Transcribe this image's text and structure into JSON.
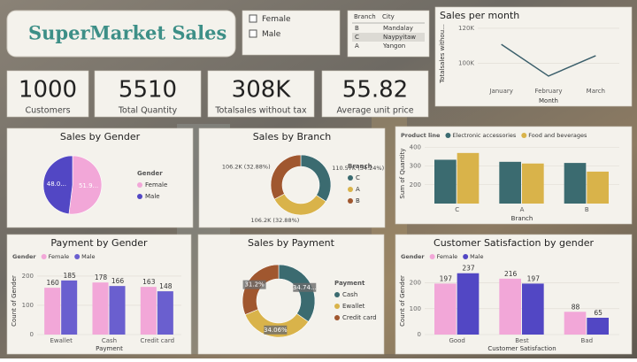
{
  "header": {
    "title": "SuperMarket Sales"
  },
  "gender_slicer": {
    "options": [
      "Female",
      "Male"
    ]
  },
  "branch_table": {
    "columns": [
      "Branch",
      "City"
    ],
    "rows": [
      [
        "B",
        "Mandalay"
      ],
      [
        "C",
        "Naypyitaw"
      ],
      [
        "A",
        "Yangon"
      ]
    ]
  },
  "kpis": [
    {
      "value": 1000,
      "label": "Customers"
    },
    {
      "value": 5510,
      "label": "Total Quantity"
    },
    {
      "value": "308K",
      "label": "Totalsales without tax"
    },
    {
      "value": 55.82,
      "label": "Average unit price"
    }
  ],
  "chart_data": [
    {
      "type": "line",
      "title": "Sales per month",
      "x_label": "Month",
      "y_label": "Totalsales withou...",
      "categories": [
        "January",
        "February",
        "March"
      ],
      "values": [
        110754,
        92589,
        104243
      ],
      "color": "#3b5f6b",
      "ylim": [
        88000,
        123000
      ],
      "yticks": [
        {
          "value": 100000,
          "label": "100K"
        },
        {
          "value": 120000,
          "label": "120K"
        }
      ]
    },
    {
      "type": "pie",
      "title": "Sales by Gender",
      "legend_title": "Gender",
      "categories": [
        "Female",
        "Male"
      ],
      "values": [
        51.98,
        48.02
      ],
      "value_labels": [
        "51.9...",
        "48.0..."
      ],
      "colors": [
        "#f2a7d8",
        "#5247c4"
      ]
    },
    {
      "type": "donut",
      "title": "Sales by Branch",
      "legend_title": "Branch",
      "categories": [
        "C",
        "A",
        "B"
      ],
      "values": [
        110568.71,
        106200.37,
        106197.67
      ],
      "value_labels": [
        "110.57K (34.24%)",
        "106.2K (32.88%)",
        "106.2K (32.88%)"
      ],
      "colors": [
        "#3b6b70",
        "#d9b34a",
        "#a0572f"
      ]
    },
    {
      "type": "bar",
      "legend_title": "Product line",
      "x_label": "Branch",
      "y_label": "Sum of Quantity",
      "categories": [
        "C",
        "A",
        "B"
      ],
      "series": [
        {
          "name": "Electronic accessories",
          "color": "#3b6b70",
          "values": [
            333,
            322,
            316
          ]
        },
        {
          "name": "Food and beverages",
          "color": "#d9b34a",
          "values": [
            369,
            313,
            270
          ]
        }
      ],
      "ylim": [
        100,
        420
      ],
      "yticks": [
        200,
        300,
        400
      ],
      "data_labels": false
    },
    {
      "type": "bar",
      "title": "Payment by Gender",
      "legend_title": "Gender",
      "x_label": "Payment",
      "y_label": "Count of Gender",
      "categories": [
        "Ewallet",
        "Cash",
        "Credit card"
      ],
      "series": [
        {
          "name": "Female",
          "color": "#f2a7d8",
          "values": [
            160,
            178,
            163
          ]
        },
        {
          "name": "Male",
          "color": "#6a5fcf",
          "values": [
            185,
            166,
            148
          ]
        }
      ],
      "ylim": [
        0,
        230
      ],
      "yticks": [
        0,
        100,
        200
      ],
      "data_labels": true
    },
    {
      "type": "donut",
      "title": "Sales by Payment",
      "legend_title": "Payment",
      "categories": [
        "Cash",
        "Ewallet",
        "Credit card"
      ],
      "values": [
        34.74,
        34.06,
        31.2
      ],
      "value_labels": [
        "34.74...",
        "34.06%",
        "31.2%"
      ],
      "colors": [
        "#3b6b70",
        "#d9b34a",
        "#a0572f"
      ]
    },
    {
      "type": "bar",
      "title": "Customer Satisfaction by gender",
      "legend_title": "Gender",
      "x_label": "Customer Satisfaction",
      "y_label": "Count of Gender",
      "categories": [
        "Good",
        "Best",
        "Bad"
      ],
      "series": [
        {
          "name": "Female",
          "color": "#f2a7d8",
          "values": [
            197,
            216,
            88
          ]
        },
        {
          "name": "Male",
          "color": "#5247c4",
          "values": [
            237,
            197,
            65
          ]
        }
      ],
      "ylim": [
        0,
        260
      ],
      "yticks": [
        0,
        100,
        200
      ],
      "data_labels": true
    }
  ]
}
